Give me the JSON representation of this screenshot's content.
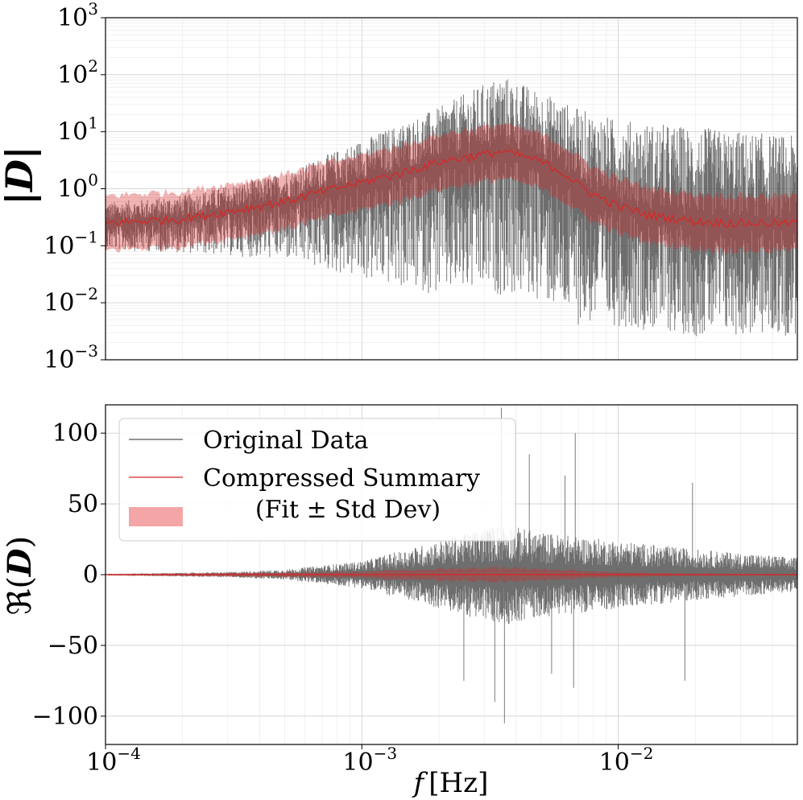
{
  "chart_data": [
    {
      "type": "line",
      "panel": "top",
      "ylabel": "|D|",
      "yscale": "log",
      "xscale": "log",
      "xlim": [
        0.0001,
        0.05
      ],
      "ylim": [
        0.001,
        1000
      ],
      "ytick_values": [
        0.001,
        0.01,
        0.1,
        1,
        10,
        100,
        1000
      ],
      "ytick_labels": [
        {
          "base": "10",
          "exp": "−3"
        },
        {
          "base": "10",
          "exp": "−2"
        },
        {
          "base": "10",
          "exp": "−1"
        },
        {
          "base": "10",
          "exp": "0"
        },
        {
          "base": "10",
          "exp": "1"
        },
        {
          "base": "10",
          "exp": "2"
        },
        {
          "base": "10",
          "exp": "3"
        }
      ],
      "grid": true,
      "series": [
        {
          "name": "Original Data",
          "color": "#555555",
          "envelope_freq": [
            0.0001,
            0.0002,
            0.0005,
            0.001,
            0.002,
            0.0035,
            0.005,
            0.007,
            0.01,
            0.02,
            0.05
          ],
          "envelope_low": [
            0.08,
            0.07,
            0.05,
            0.02,
            0.01,
            0.01,
            0.008,
            0.003,
            0.003,
            0.002,
            0.002
          ],
          "envelope_high": [
            0.6,
            0.8,
            2.0,
            8.0,
            30.0,
            120.0,
            60.0,
            30.0,
            20.0,
            15.0,
            10.0
          ]
        },
        {
          "name": "Compressed Summary (Fit ± Std Dev)",
          "color": "#d62728",
          "freq": [
            0.0001,
            0.0002,
            0.0003,
            0.0005,
            0.0007,
            0.001,
            0.0015,
            0.002,
            0.003,
            0.0035,
            0.004,
            0.005,
            0.006,
            0.007,
            0.008,
            0.01,
            0.013,
            0.02,
            0.03,
            0.05
          ],
          "fit": [
            0.25,
            0.3,
            0.4,
            0.6,
            0.9,
            1.3,
            2.0,
            3.0,
            4.0,
            4.5,
            4.0,
            3.0,
            2.0,
            1.2,
            0.8,
            0.5,
            0.35,
            0.27,
            0.25,
            0.25
          ],
          "std_factor": 3.0
        }
      ]
    },
    {
      "type": "line",
      "panel": "bottom",
      "ylabel": "ℜ(D)",
      "xlabel": "f [Hz]",
      "xscale": "log",
      "xlim": [
        0.0001,
        0.05
      ],
      "ylim": [
        -120,
        120
      ],
      "yticks": [
        100,
        50,
        0,
        -50,
        -100
      ],
      "ytick_labels": [
        "100",
        "50",
        "0",
        "−50",
        "−100"
      ],
      "xtick_values": [
        0.0001,
        0.001,
        0.01
      ],
      "xtick_labels": [
        {
          "base": "10",
          "exp": "−4"
        },
        {
          "base": "10",
          "exp": "−3"
        },
        {
          "base": "10",
          "exp": "−2"
        }
      ],
      "grid": true,
      "series": [
        {
          "name": "Original Data",
          "color": "#555555",
          "envelope_freq": [
            0.0001,
            0.0003,
            0.0005,
            0.001,
            0.002,
            0.0035,
            0.005,
            0.01,
            0.02,
            0.05
          ],
          "amplitude": [
            0.5,
            1.5,
            3.0,
            8.0,
            20.0,
            30.0,
            25.0,
            20.0,
            15.0,
            10.0
          ],
          "spikes": [
            [
              0.0035,
              118
            ],
            [
              0.0036,
              -105
            ],
            [
              0.0033,
              -90
            ],
            [
              0.0025,
              -75
            ],
            [
              0.0068,
              100
            ],
            [
              0.0067,
              -80
            ],
            [
              0.0045,
              85
            ],
            [
              0.0062,
              70
            ],
            [
              0.0195,
              65
            ],
            [
              0.0182,
              -75
            ],
            [
              0.0055,
              -70
            ]
          ]
        },
        {
          "name": "Compressed Summary (Fit ± Std Dev)",
          "color": "#d62728",
          "band_freq": [
            0.0001,
            0.001,
            0.002,
            0.0035,
            0.005,
            0.01,
            0.02,
            0.05
          ],
          "band_halfwidth": [
            0.5,
            2.0,
            4.0,
            5.0,
            4.0,
            1.5,
            0.8,
            0.5
          ]
        }
      ]
    }
  ],
  "legend": {
    "original_label": "Original Data",
    "summary_label": "Compressed Summary",
    "band_label": "(Fit ± Std Dev)"
  },
  "labels": {
    "top_ylabel": "|D|",
    "bottom_ylabel_prefix": "ℜ(",
    "bottom_ylabel_var": "D",
    "bottom_ylabel_suffix": ")",
    "xlabel_var": "f",
    "xlabel_unit": "[Hz]"
  },
  "colors": {
    "original": "#555555",
    "fit": "#d62728",
    "band": "#f4a6a6"
  }
}
